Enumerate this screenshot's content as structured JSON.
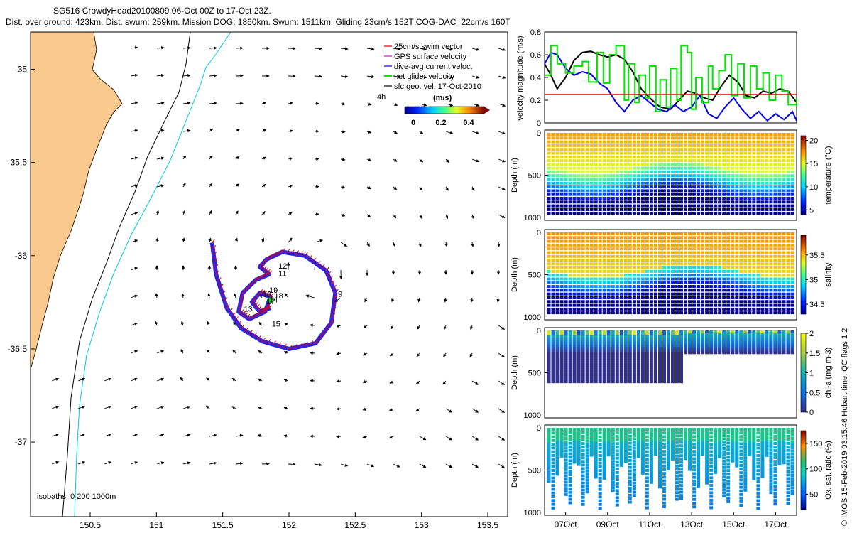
{
  "header": {
    "line1": "SG516 CrowdyHead20100809 06-Oct 00Z to 17-Oct 23Z.",
    "line2": "Dist. over ground: 423km. Dist. swum: 259km. Mission DOG: 1860km. Swum: 1511km. Gliding 23cm/s 152T COG-DAC=22cm/s 160T"
  },
  "side_note": "© IMOS 15-Feb-2019 03:15:46 Hobart time. QC flags 1  2",
  "colors": {
    "land": "#f9c98e",
    "coast": "#000000",
    "isobath_200": "#000000",
    "isobath_1000": "#00c8e6",
    "swim": "#e60000",
    "gps": "#e600e6",
    "dac": "#0000e6",
    "net": "#00e600",
    "sfc": "#000000"
  },
  "chart_data": [
    {
      "type": "map",
      "name": "track",
      "xlim": [
        150.05,
        153.65
      ],
      "ylim": [
        -37.4,
        -34.8
      ],
      "xticks": [
        "150.5",
        "151",
        "151.5",
        "152",
        "152.5",
        "153",
        "153.5"
      ],
      "yticks": [
        "-35",
        "-35.5",
        "-36",
        "-36.5",
        "-37"
      ],
      "legend": {
        "items": [
          "25cm/s swim vector",
          "GPS surface velocity",
          "dive-avg current veloc.",
          "net glider velocity",
          "sfc geo. vel. 17-Oct-2010"
        ],
        "scale_label": "4h",
        "colorbar_title": "(m/s)",
        "colorbar_ticks": [
          "0",
          "0.2",
          "0.4"
        ],
        "colorbar_range": [
          0,
          0.5
        ]
      },
      "isobath_label": "isobaths: 0   200  1000m",
      "day_labels": [
        {
          "text": "9",
          "lon": 152.37,
          "lat": -36.22
        },
        {
          "text": "11",
          "lon": 151.92,
          "lat": -36.11
        },
        {
          "text": "12",
          "lon": 151.92,
          "lat": -36.07
        },
        {
          "text": "13",
          "lon": 151.66,
          "lat": -36.3
        },
        {
          "text": "14",
          "lon": 151.85,
          "lat": -36.25
        },
        {
          "text": "15",
          "lon": 151.87,
          "lat": -36.38
        },
        {
          "text": "16",
          "lon": 151.8,
          "lat": -36.22
        },
        {
          "text": "17",
          "lon": 151.83,
          "lat": -36.26
        },
        {
          "text": "18",
          "lon": 151.89,
          "lat": -36.23
        },
        {
          "text": "19",
          "lon": 151.85,
          "lat": -36.2
        }
      ],
      "track_points": [
        {
          "lon": 151.42,
          "lat": -35.93
        },
        {
          "lon": 151.45,
          "lat": -36.1
        },
        {
          "lon": 151.53,
          "lat": -36.28
        },
        {
          "lon": 151.64,
          "lat": -36.39
        },
        {
          "lon": 151.8,
          "lat": -36.46
        },
        {
          "lon": 152.0,
          "lat": -36.5
        },
        {
          "lon": 152.2,
          "lat": -36.47
        },
        {
          "lon": 152.32,
          "lat": -36.36
        },
        {
          "lon": 152.35,
          "lat": -36.2
        },
        {
          "lon": 152.28,
          "lat": -36.08
        },
        {
          "lon": 152.12,
          "lat": -36.0
        },
        {
          "lon": 151.95,
          "lat": -35.98
        },
        {
          "lon": 151.83,
          "lat": -36.02
        },
        {
          "lon": 151.78,
          "lat": -36.06
        },
        {
          "lon": 151.85,
          "lat": -36.1
        },
        {
          "lon": 151.75,
          "lat": -36.13
        },
        {
          "lon": 151.65,
          "lat": -36.2
        },
        {
          "lon": 151.62,
          "lat": -36.3
        },
        {
          "lon": 151.7,
          "lat": -36.34
        },
        {
          "lon": 151.82,
          "lat": -36.3
        },
        {
          "lon": 151.86,
          "lat": -36.22
        },
        {
          "lon": 151.78,
          "lat": -36.2
        },
        {
          "lon": 151.72,
          "lat": -36.25
        },
        {
          "lon": 151.78,
          "lat": -36.3
        },
        {
          "lon": 151.86,
          "lat": -36.28
        }
      ]
    },
    {
      "type": "line",
      "name": "velocity",
      "ylabel": "velocity magnitude (m/s)",
      "ylim": [
        0,
        0.8
      ],
      "yticks": [
        "0",
        "0.2",
        "0.4",
        "0.6",
        "0.8"
      ],
      "xlim": [
        6.0,
        18.0
      ],
      "xticks": [
        "07Oct",
        "09Oct",
        "11Oct",
        "13Oct",
        "15Oct",
        "17Oct"
      ],
      "reference_line": 0.25,
      "series": [
        {
          "color": "#000000",
          "x": [
            6.0,
            6.3,
            6.6,
            7.0,
            7.4,
            7.8,
            8.2,
            8.6,
            9.0,
            9.4,
            9.8,
            10.2,
            10.6,
            11.0,
            11.5,
            12.0,
            12.4,
            12.8,
            13.2,
            13.6,
            14.0,
            14.4,
            14.8,
            15.2,
            15.6,
            16.0,
            16.4,
            16.8,
            17.2,
            17.6,
            18.0
          ],
          "y": [
            0.52,
            0.42,
            0.3,
            0.4,
            0.55,
            0.62,
            0.63,
            0.6,
            0.58,
            0.6,
            0.56,
            0.45,
            0.3,
            0.22,
            0.14,
            0.12,
            0.2,
            0.28,
            0.26,
            0.22,
            0.2,
            0.32,
            0.42,
            0.36,
            0.24,
            0.22,
            0.28,
            0.26,
            0.3,
            0.28,
            0.18
          ]
        },
        {
          "color": "#0000e6",
          "x": [
            6.0,
            6.3,
            6.6,
            7.0,
            7.4,
            7.8,
            8.2,
            8.6,
            9.0,
            9.4,
            9.8,
            10.2,
            10.6,
            11.0,
            11.4,
            11.8,
            12.2,
            12.6,
            13.0,
            13.4,
            13.8,
            14.2,
            14.6,
            15.0,
            15.4,
            15.8,
            16.2,
            16.6,
            17.0,
            17.4,
            17.8,
            18.0
          ],
          "y": [
            0.52,
            0.62,
            0.6,
            0.48,
            0.42,
            0.45,
            0.43,
            0.35,
            0.3,
            0.18,
            0.1,
            0.2,
            0.24,
            0.18,
            0.12,
            0.1,
            0.16,
            0.1,
            0.14,
            0.24,
            0.08,
            0.04,
            0.14,
            0.22,
            0.12,
            0.04,
            0.1,
            0.02,
            0.08,
            0.03,
            0.1,
            0.02
          ]
        },
        {
          "color": "#00e600",
          "step": true,
          "x": [
            6.0,
            6.3,
            6.6,
            7.0,
            7.4,
            7.8,
            8.1,
            8.5,
            8.8,
            9.1,
            9.4,
            9.8,
            10.0,
            10.3,
            10.5,
            10.8,
            11.0,
            11.3,
            11.5,
            11.8,
            12.0,
            12.3,
            12.5,
            12.8,
            13.0,
            13.2,
            13.5,
            13.8,
            14.0,
            14.3,
            14.6,
            14.9,
            15.2,
            15.5,
            15.8,
            16.1,
            16.4,
            16.7,
            17.0,
            17.3,
            17.6,
            18.0
          ],
          "y": [
            0.42,
            0.68,
            0.52,
            0.44,
            0.5,
            0.54,
            0.36,
            0.62,
            0.35,
            0.6,
            0.68,
            0.2,
            0.52,
            0.18,
            0.42,
            0.22,
            0.5,
            0.1,
            0.38,
            0.14,
            0.48,
            0.2,
            0.68,
            0.62,
            0.12,
            0.4,
            0.18,
            0.5,
            0.3,
            0.46,
            0.6,
            0.24,
            0.52,
            0.22,
            0.5,
            0.3,
            0.44,
            0.2,
            0.42,
            0.28,
            0.16,
            0.22
          ]
        }
      ]
    },
    {
      "type": "heatmap",
      "name": "temperature",
      "ylabel": "Depth (m)",
      "yticks": [
        "0",
        "500",
        "1000"
      ],
      "ylim": [
        0,
        1000
      ],
      "cbar_label": "temperature (°C)",
      "cbar_ticks": [
        "5",
        "10",
        "15",
        "20"
      ],
      "cbar_range": [
        4,
        21
      ]
    },
    {
      "type": "heatmap",
      "name": "salinity",
      "ylabel": "Depth (m)",
      "yticks": [
        "0",
        "500",
        "1000"
      ],
      "ylim": [
        0,
        1000
      ],
      "cbar_label": "salinity",
      "cbar_ticks": [
        "34.5",
        "35",
        "35.5"
      ],
      "cbar_range": [
        34.3,
        35.9
      ]
    },
    {
      "type": "heatmap",
      "name": "chla",
      "ylabel": "Depth (m)",
      "yticks": [
        "0",
        "500",
        "1000"
      ],
      "ylim": [
        0,
        1000
      ],
      "cbar_label": "chl-a (mg m-3)",
      "cbar_ticks": [
        "0",
        "0.5",
        "1",
        "1.5",
        "2"
      ],
      "cbar_range": [
        0,
        2
      ]
    },
    {
      "type": "heatmap",
      "name": "oxygen",
      "ylabel": "Depth (m)",
      "yticks": [
        "0",
        "500",
        "1000"
      ],
      "ylim": [
        0,
        1000
      ],
      "cbar_label": "Ox. sat. ratio (%)",
      "cbar_ticks": [
        "50",
        "100",
        "150"
      ],
      "cbar_range": [
        20,
        175
      ]
    }
  ]
}
